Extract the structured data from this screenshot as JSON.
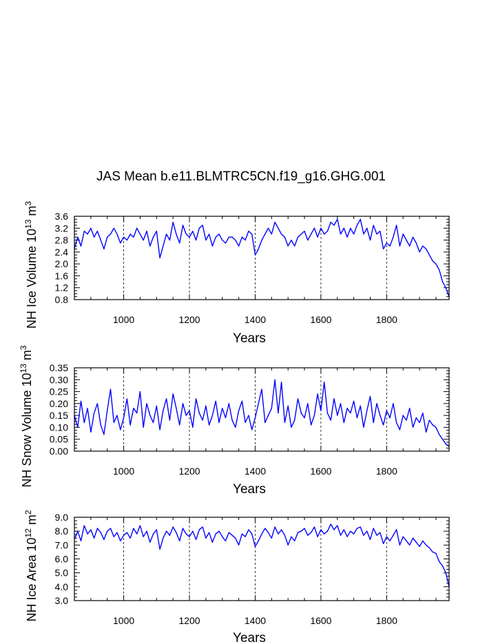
{
  "chart_data": [
    {
      "type": "line",
      "title": "JAS Mean b.e11.BLMTRC5CN.f19_g16.GHG.001",
      "xlabel": "Years",
      "ylabel": {
        "prefix": "NH Ice Volume 10",
        "exp": "13",
        "unit": " m",
        "unit_exp": "3"
      },
      "xlim": [
        850,
        1990
      ],
      "ylim": [
        0.8,
        3.6
      ],
      "xticks": [
        1000,
        1200,
        1400,
        1600,
        1800
      ],
      "xtick_labels": [
        "1000",
        "1200",
        "1400",
        "1600",
        "1800"
      ],
      "yticks": [
        0.8,
        1.2,
        1.6,
        2.0,
        2.4,
        2.8,
        3.2,
        3.6
      ],
      "ytick_labels": [
        "0.8",
        "1.2",
        "1.6",
        "2.0",
        "2.4",
        "2.8",
        "3.2",
        "3.6"
      ],
      "grid_x": "dashed vertical at major x ticks",
      "series": [
        {
          "name": "NH Ice Volume",
          "color": "#0000ff",
          "x": [
            850,
            860,
            870,
            880,
            890,
            900,
            910,
            920,
            930,
            940,
            950,
            960,
            970,
            980,
            990,
            1000,
            1010,
            1020,
            1030,
            1040,
            1050,
            1060,
            1070,
            1080,
            1090,
            1100,
            1110,
            1120,
            1130,
            1140,
            1150,
            1160,
            1170,
            1180,
            1190,
            1200,
            1210,
            1220,
            1230,
            1240,
            1250,
            1260,
            1270,
            1280,
            1290,
            1300,
            1310,
            1320,
            1330,
            1340,
            1350,
            1360,
            1370,
            1380,
            1390,
            1400,
            1410,
            1420,
            1430,
            1440,
            1450,
            1460,
            1470,
            1480,
            1490,
            1500,
            1510,
            1520,
            1530,
            1540,
            1550,
            1560,
            1570,
            1580,
            1590,
            1600,
            1610,
            1620,
            1630,
            1640,
            1650,
            1660,
            1670,
            1680,
            1690,
            1700,
            1710,
            1720,
            1730,
            1740,
            1750,
            1760,
            1770,
            1780,
            1790,
            1800,
            1810,
            1820,
            1830,
            1840,
            1850,
            1860,
            1870,
            1880,
            1890,
            1900,
            1910,
            1920,
            1930,
            1940,
            1950,
            1960,
            1970,
            1980,
            1990
          ],
          "values": [
            2.5,
            2.9,
            2.6,
            3.1,
            3.0,
            3.2,
            2.9,
            3.1,
            2.8,
            2.5,
            2.9,
            3.0,
            3.2,
            3.0,
            2.7,
            2.9,
            2.8,
            3.0,
            2.9,
            3.2,
            3.0,
            2.8,
            3.1,
            2.6,
            2.9,
            3.1,
            2.2,
            2.6,
            3.0,
            2.8,
            3.4,
            3.0,
            2.7,
            3.3,
            3.0,
            2.9,
            3.1,
            2.8,
            3.2,
            3.3,
            2.8,
            3.0,
            2.6,
            2.9,
            3.0,
            2.8,
            2.7,
            2.9,
            2.9,
            2.8,
            2.6,
            2.9,
            2.8,
            3.1,
            3.0,
            2.3,
            2.5,
            2.8,
            3.0,
            3.2,
            3.0,
            3.4,
            3.2,
            3.0,
            2.9,
            2.6,
            2.8,
            2.6,
            2.9,
            3.0,
            3.1,
            2.8,
            3.0,
            3.2,
            2.9,
            3.2,
            3.0,
            3.1,
            3.4,
            3.3,
            3.5,
            3.0,
            3.2,
            2.9,
            3.2,
            3.0,
            3.3,
            3.5,
            3.0,
            3.2,
            2.8,
            3.3,
            3.0,
            3.1,
            2.5,
            2.7,
            2.6,
            2.9,
            3.3,
            2.6,
            3.0,
            2.8,
            2.6,
            2.9,
            2.7,
            2.4,
            2.6,
            2.5,
            2.3,
            2.1,
            2.0,
            1.8,
            1.4,
            1.2,
            0.9
          ]
        }
      ]
    },
    {
      "type": "line",
      "title": "",
      "xlabel": "Years",
      "ylabel": {
        "prefix": "NH Snow Volume 10",
        "exp": "13",
        "unit": " m",
        "unit_exp": "3"
      },
      "xlim": [
        850,
        1990
      ],
      "ylim": [
        0.0,
        0.35
      ],
      "xticks": [
        1000,
        1200,
        1400,
        1600,
        1800
      ],
      "xtick_labels": [
        "1000",
        "1200",
        "1400",
        "1600",
        "1800"
      ],
      "yticks": [
        0.0,
        0.05,
        0.1,
        0.15,
        0.2,
        0.25,
        0.3,
        0.35
      ],
      "ytick_labels": [
        "0.00",
        "0.05",
        "0.10",
        "0.15",
        "0.20",
        "0.25",
        "0.30",
        "0.35"
      ],
      "grid_x": "dashed vertical at major x ticks",
      "series": [
        {
          "name": "NH Snow Volume",
          "color": "#0000ff",
          "x": [
            850,
            860,
            870,
            880,
            890,
            900,
            910,
            920,
            930,
            940,
            950,
            960,
            970,
            980,
            990,
            1000,
            1010,
            1020,
            1030,
            1040,
            1050,
            1060,
            1070,
            1080,
            1090,
            1100,
            1110,
            1120,
            1130,
            1140,
            1150,
            1160,
            1170,
            1180,
            1190,
            1200,
            1210,
            1220,
            1230,
            1240,
            1250,
            1260,
            1270,
            1280,
            1290,
            1300,
            1310,
            1320,
            1330,
            1340,
            1350,
            1360,
            1370,
            1380,
            1390,
            1400,
            1410,
            1420,
            1430,
            1440,
            1450,
            1460,
            1470,
            1480,
            1490,
            1500,
            1510,
            1520,
            1530,
            1540,
            1550,
            1560,
            1570,
            1580,
            1590,
            1600,
            1610,
            1620,
            1630,
            1640,
            1650,
            1660,
            1670,
            1680,
            1690,
            1700,
            1710,
            1720,
            1730,
            1740,
            1750,
            1760,
            1770,
            1780,
            1790,
            1800,
            1810,
            1820,
            1830,
            1840,
            1850,
            1860,
            1870,
            1880,
            1890,
            1900,
            1910,
            1920,
            1930,
            1940,
            1950,
            1960,
            1970,
            1980,
            1990
          ],
          "values": [
            0.15,
            0.1,
            0.21,
            0.12,
            0.18,
            0.08,
            0.16,
            0.2,
            0.11,
            0.07,
            0.17,
            0.26,
            0.12,
            0.15,
            0.09,
            0.14,
            0.22,
            0.11,
            0.18,
            0.16,
            0.25,
            0.1,
            0.2,
            0.15,
            0.12,
            0.19,
            0.09,
            0.17,
            0.22,
            0.13,
            0.24,
            0.18,
            0.11,
            0.2,
            0.15,
            0.17,
            0.1,
            0.22,
            0.16,
            0.13,
            0.19,
            0.11,
            0.15,
            0.21,
            0.12,
            0.18,
            0.14,
            0.2,
            0.13,
            0.1,
            0.17,
            0.21,
            0.12,
            0.15,
            0.09,
            0.14,
            0.2,
            0.26,
            0.12,
            0.15,
            0.18,
            0.3,
            0.16,
            0.29,
            0.12,
            0.19,
            0.1,
            0.13,
            0.22,
            0.16,
            0.14,
            0.2,
            0.11,
            0.15,
            0.24,
            0.17,
            0.29,
            0.16,
            0.13,
            0.22,
            0.15,
            0.2,
            0.12,
            0.18,
            0.16,
            0.21,
            0.14,
            0.19,
            0.1,
            0.17,
            0.23,
            0.12,
            0.2,
            0.15,
            0.11,
            0.17,
            0.14,
            0.2,
            0.12,
            0.09,
            0.15,
            0.13,
            0.18,
            0.1,
            0.14,
            0.12,
            0.16,
            0.08,
            0.13,
            0.11,
            0.1,
            0.07,
            0.05,
            0.03,
            0.02
          ]
        }
      ]
    },
    {
      "type": "line",
      "title": "",
      "xlabel": "Years",
      "ylabel": {
        "prefix": "NH Ice Area 10",
        "exp": "12",
        "unit": " m",
        "unit_exp": "2"
      },
      "xlim": [
        850,
        1990
      ],
      "ylim": [
        3.0,
        9.0
      ],
      "xticks": [
        1000,
        1200,
        1400,
        1600,
        1800
      ],
      "xtick_labels": [
        "1000",
        "1200",
        "1400",
        "1600",
        "1800"
      ],
      "yticks": [
        3.0,
        4.0,
        5.0,
        6.0,
        7.0,
        8.0,
        9.0
      ],
      "ytick_labels": [
        "3.0",
        "4.0",
        "5.0",
        "6.0",
        "7.0",
        "8.0",
        "9.0"
      ],
      "grid_x": "dashed vertical at major x ticks",
      "series": [
        {
          "name": "NH Ice Area",
          "color": "#0000ff",
          "x": [
            850,
            860,
            870,
            880,
            890,
            900,
            910,
            920,
            930,
            940,
            950,
            960,
            970,
            980,
            990,
            1000,
            1010,
            1020,
            1030,
            1040,
            1050,
            1060,
            1070,
            1080,
            1090,
            1100,
            1110,
            1120,
            1130,
            1140,
            1150,
            1160,
            1170,
            1180,
            1190,
            1200,
            1210,
            1220,
            1230,
            1240,
            1250,
            1260,
            1270,
            1280,
            1290,
            1300,
            1310,
            1320,
            1330,
            1340,
            1350,
            1360,
            1370,
            1380,
            1390,
            1400,
            1410,
            1420,
            1430,
            1440,
            1450,
            1460,
            1470,
            1480,
            1490,
            1500,
            1510,
            1520,
            1530,
            1540,
            1550,
            1560,
            1570,
            1580,
            1590,
            1600,
            1610,
            1620,
            1630,
            1640,
            1650,
            1660,
            1670,
            1680,
            1690,
            1700,
            1710,
            1720,
            1730,
            1740,
            1750,
            1760,
            1770,
            1780,
            1790,
            1800,
            1810,
            1820,
            1830,
            1840,
            1850,
            1860,
            1870,
            1880,
            1890,
            1900,
            1910,
            1920,
            1930,
            1940,
            1950,
            1960,
            1970,
            1980,
            1990
          ],
          "values": [
            7.4,
            8.0,
            7.3,
            8.4,
            7.8,
            8.1,
            7.5,
            8.2,
            7.9,
            7.4,
            8.0,
            8.2,
            7.6,
            7.9,
            7.3,
            7.7,
            7.9,
            7.5,
            8.2,
            7.8,
            8.4,
            7.6,
            8.0,
            7.2,
            7.8,
            8.1,
            6.7,
            7.5,
            8.0,
            7.7,
            8.3,
            7.9,
            7.3,
            8.2,
            7.8,
            7.6,
            8.0,
            7.4,
            8.1,
            8.3,
            7.5,
            7.9,
            7.2,
            7.8,
            8.0,
            7.6,
            7.3,
            7.9,
            7.7,
            7.5,
            7.0,
            7.8,
            7.6,
            8.1,
            7.8,
            6.9,
            7.3,
            7.8,
            8.2,
            7.9,
            7.5,
            8.3,
            7.8,
            8.1,
            7.7,
            7.0,
            7.6,
            7.3,
            7.9,
            8.0,
            8.2,
            7.7,
            7.9,
            8.3,
            7.6,
            8.1,
            7.8,
            8.0,
            8.5,
            8.1,
            8.4,
            7.7,
            8.1,
            7.6,
            8.0,
            7.8,
            8.2,
            8.3,
            7.7,
            8.0,
            7.4,
            8.2,
            7.7,
            7.9,
            7.1,
            7.6,
            7.3,
            7.7,
            8.1,
            7.0,
            7.6,
            7.3,
            7.0,
            7.5,
            7.2,
            6.9,
            7.3,
            7.0,
            6.8,
            6.5,
            6.4,
            5.8,
            5.5,
            5.0,
            4.0
          ]
        }
      ]
    }
  ]
}
